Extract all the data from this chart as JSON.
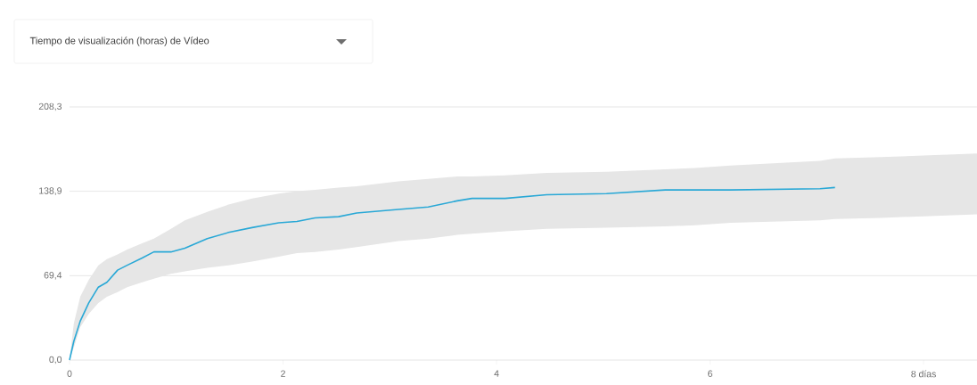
{
  "chart_data": {
    "type": "line",
    "title": "Tiempo de visualización (horas) de Vídeo",
    "x": [
      0,
      0.04,
      0.1,
      0.18,
      0.27,
      0.35,
      0.45,
      0.54,
      0.68,
      0.79,
      0.95,
      1.08,
      1.29,
      1.49,
      1.71,
      1.96,
      2.13,
      2.3,
      2.52,
      2.69,
      3.08,
      3.36,
      3.63,
      3.77,
      4.08,
      4.47,
      5.03,
      5.58,
      5.86,
      6.19,
      7.03,
      7.17,
      7.6,
      8.5
    ],
    "series": [
      {
        "color": "#29a8d6",
        "values": [
          0,
          15.4,
          32,
          47,
          60,
          64,
          74,
          78,
          84,
          89,
          89,
          92,
          100,
          105,
          109,
          113,
          114,
          117,
          118,
          121,
          124,
          126,
          131,
          133,
          133,
          136,
          137,
          140,
          140,
          140,
          141,
          142,
          null,
          null
        ],
        "upper": [
          0,
          30,
          52,
          66,
          78,
          83,
          87,
          91,
          96,
          100,
          108,
          115,
          122,
          128,
          133,
          137,
          139,
          140,
          142,
          143,
          147,
          149,
          151,
          151,
          152,
          154,
          155,
          157,
          158,
          160,
          164,
          166,
          167,
          170
        ],
        "lower": [
          0,
          10,
          27,
          38,
          47,
          52,
          56,
          60,
          64,
          67,
          71,
          73,
          76,
          78,
          81,
          85,
          88,
          89,
          91,
          93,
          98,
          100,
          103,
          104,
          106,
          108,
          109,
          110,
          111,
          113,
          115,
          116,
          117,
          120
        ]
      }
    ],
    "xlim": [
      0,
      8.5
    ],
    "ylim": [
      0,
      208.3
    ],
    "xticks": [
      0,
      2,
      4,
      6,
      {
        "value": 8,
        "label": "8 días"
      }
    ],
    "yticks": [
      {
        "value": 0,
        "label": "0,0"
      },
      {
        "value": 69.4,
        "label": "69,4"
      },
      {
        "value": 138.9,
        "label": "138,9"
      },
      {
        "value": 208.3,
        "label": "208,3"
      }
    ],
    "grid": "y"
  }
}
